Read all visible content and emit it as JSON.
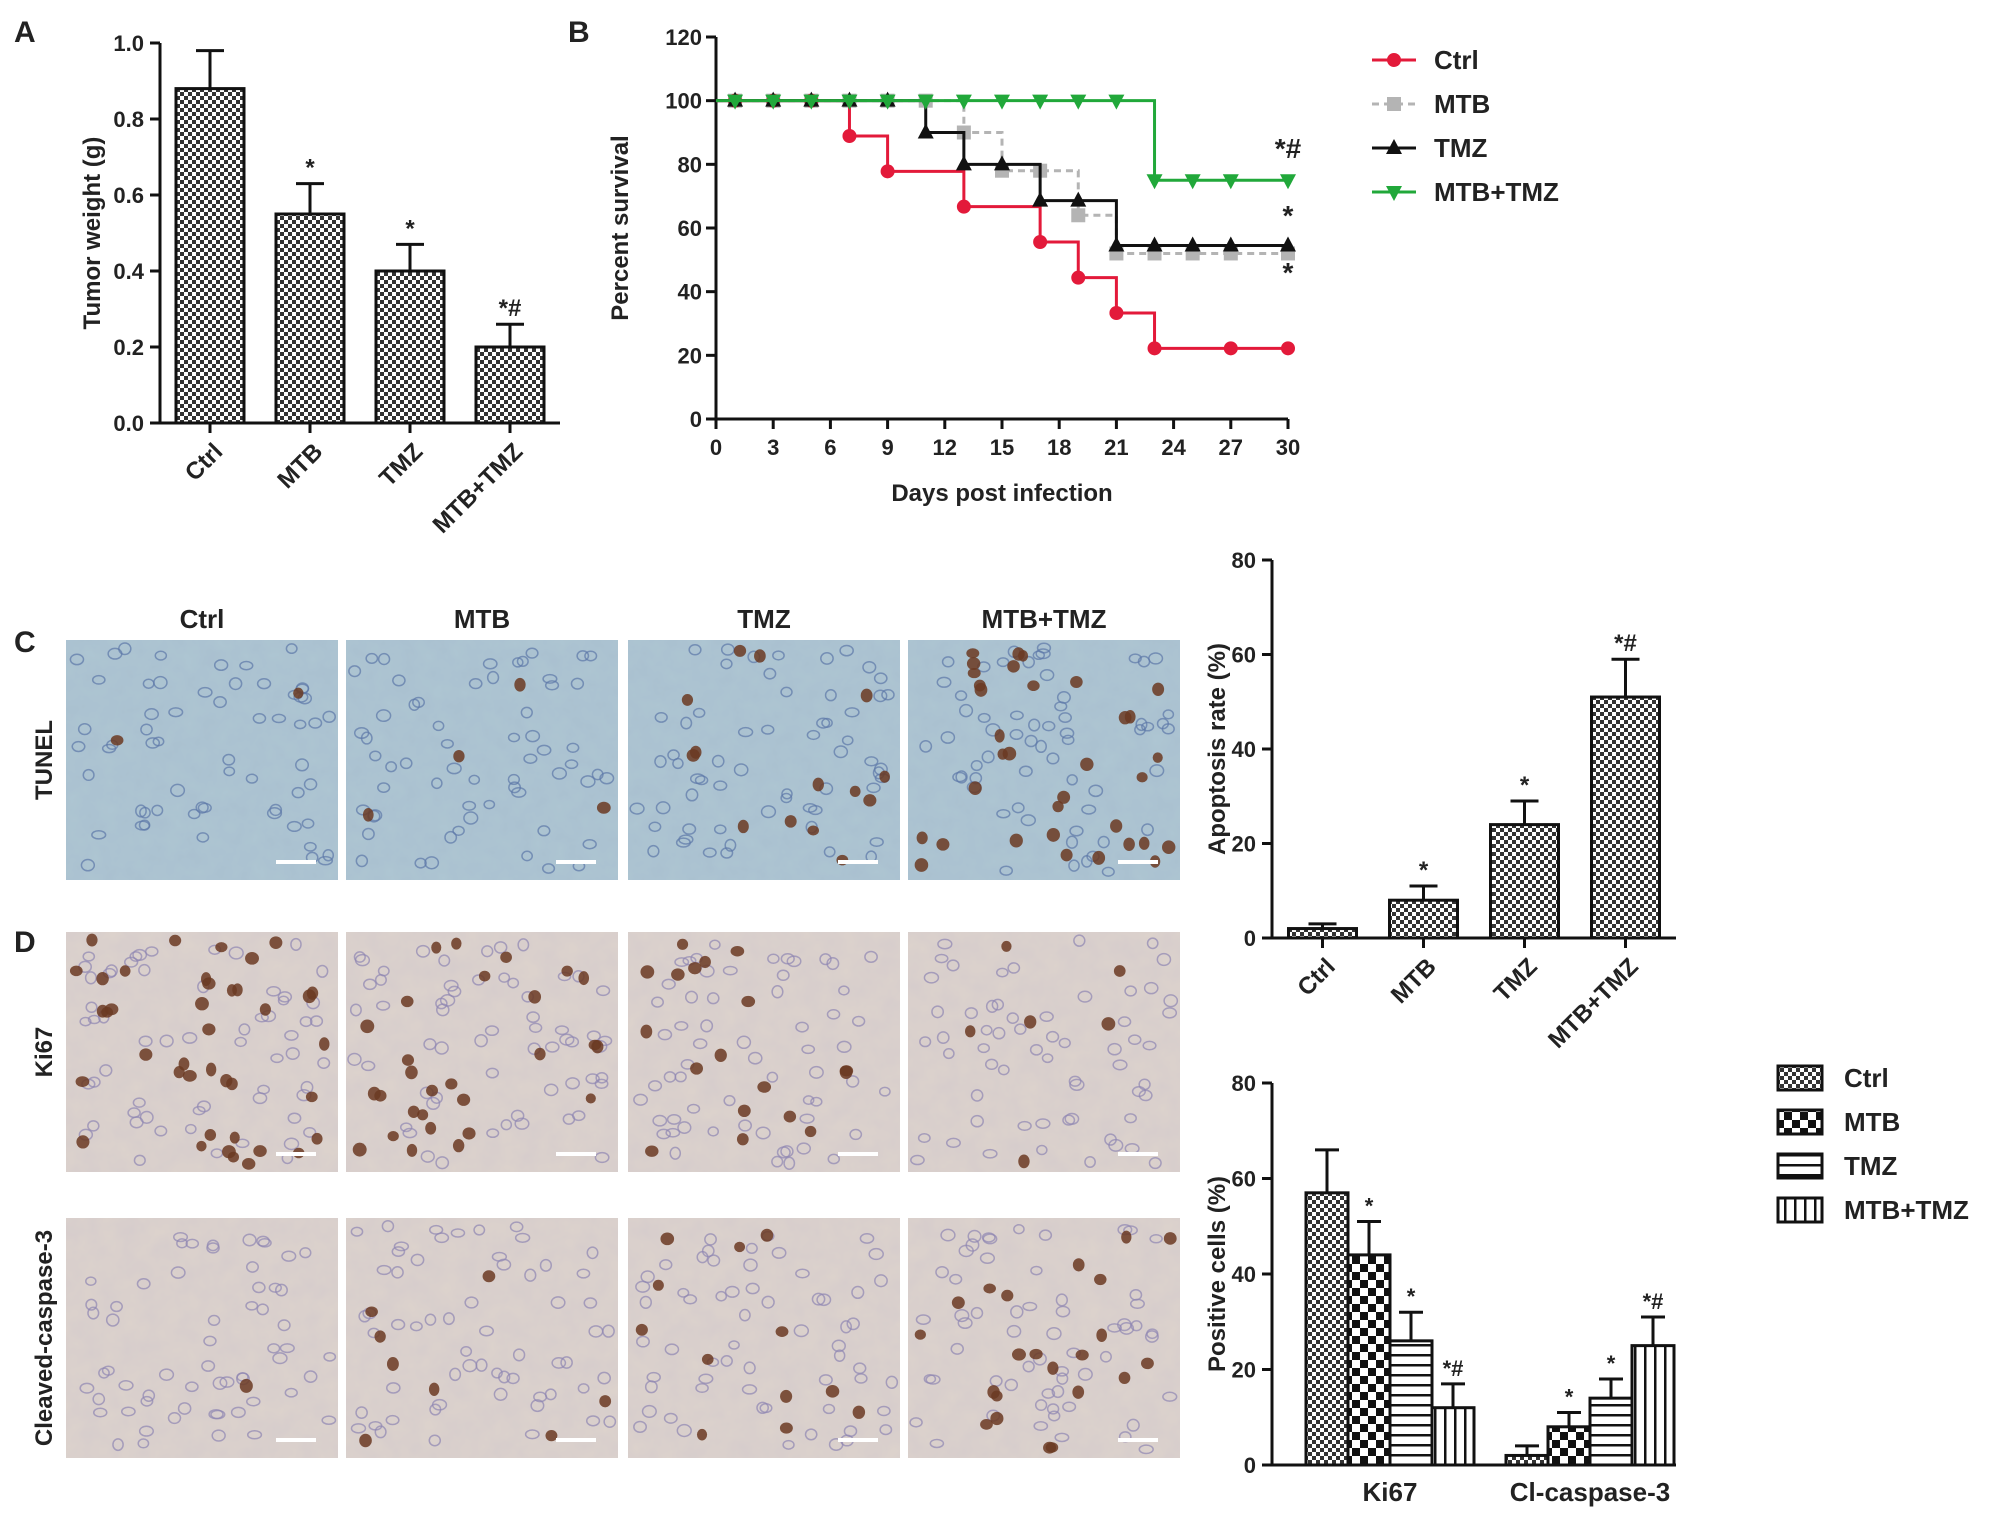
{
  "panel_letters": {
    "a": "A",
    "b": "B",
    "c": "C",
    "d": "D"
  },
  "colors": {
    "ctrl": "#e31a3a",
    "mtb": "#b4b4b4",
    "tmz": "#111111",
    "mtb_tmz": "#21a83a",
    "bar_edge": "#111111",
    "micro_bg_tunel": "#aec6d2",
    "micro_bg_ihc": "#ddd3cc"
  },
  "chart_data": [
    {
      "id": "A",
      "type": "bar",
      "categories": [
        "Ctrl",
        "MTB",
        "TMZ",
        "MTB+TMZ"
      ],
      "values": [
        0.88,
        0.55,
        0.4,
        0.2
      ],
      "errors": [
        0.1,
        0.08,
        0.07,
        0.06
      ],
      "annotations": [
        "",
        "*",
        "*",
        "*#"
      ],
      "ylabel": "Tumor weight (g)",
      "ylim": [
        0,
        1.0
      ],
      "yticks": [
        "0.0",
        "0.2",
        "0.4",
        "0.6",
        "0.8",
        "1.0"
      ],
      "grid": false,
      "legend": "none"
    },
    {
      "id": "B",
      "type": "line",
      "xlabel": "Days post infection",
      "ylabel": "Percent survival",
      "xlim": [
        0,
        30
      ],
      "ylim": [
        0,
        120
      ],
      "xticks": [
        "0",
        "3",
        "6",
        "9",
        "12",
        "15",
        "18",
        "21",
        "24",
        "27",
        "30"
      ],
      "yticks": [
        "0",
        "20",
        "40",
        "60",
        "80",
        "100",
        "120"
      ],
      "legend": "right",
      "series": [
        {
          "name": "Ctrl",
          "style": "solid",
          "marker": "circle",
          "steps": [
            [
              0,
              100
            ],
            [
              7,
              88.9
            ],
            [
              9,
              77.8
            ],
            [
              13,
              66.7
            ],
            [
              17,
              55.6
            ],
            [
              19,
              44.4
            ],
            [
              21,
              33.3
            ],
            [
              23,
              22.2
            ],
            [
              30,
              22.2
            ]
          ],
          "markers": [
            [
              1,
              100
            ],
            [
              3,
              100
            ],
            [
              5,
              100
            ],
            [
              7,
              88.9
            ],
            [
              9,
              77.8
            ],
            [
              13,
              66.7
            ],
            [
              17,
              55.6
            ],
            [
              19,
              44.4
            ],
            [
              21,
              33.3
            ],
            [
              23,
              22.2
            ],
            [
              27,
              22.2
            ],
            [
              30,
              22.2
            ]
          ],
          "annotation": ""
        },
        {
          "name": "MTB",
          "style": "dashed",
          "marker": "square",
          "steps": [
            [
              0,
              100
            ],
            [
              13,
              90
            ],
            [
              15,
              78
            ],
            [
              19,
              64
            ],
            [
              21,
              52
            ],
            [
              30,
              52
            ]
          ],
          "markers": [
            [
              1,
              100
            ],
            [
              3,
              100
            ],
            [
              5,
              100
            ],
            [
              7,
              100
            ],
            [
              9,
              100
            ],
            [
              11,
              100
            ],
            [
              13,
              90
            ],
            [
              15,
              78
            ],
            [
              17,
              78
            ],
            [
              19,
              64
            ],
            [
              21,
              52
            ],
            [
              23,
              52
            ],
            [
              25,
              52
            ],
            [
              27,
              52
            ],
            [
              30,
              52
            ]
          ],
          "annotation": "*"
        },
        {
          "name": "TMZ",
          "style": "solid",
          "marker": "triangle-up",
          "steps": [
            [
              0,
              100
            ],
            [
              11,
              90
            ],
            [
              13,
              80
            ],
            [
              17,
              68.6
            ],
            [
              21,
              54.5
            ],
            [
              30,
              54.5
            ]
          ],
          "markers": [
            [
              1,
              100
            ],
            [
              3,
              100
            ],
            [
              5,
              100
            ],
            [
              7,
              100
            ],
            [
              9,
              100
            ],
            [
              11,
              90
            ],
            [
              13,
              80
            ],
            [
              15,
              80
            ],
            [
              17,
              68.6
            ],
            [
              19,
              68.6
            ],
            [
              21,
              54.5
            ],
            [
              23,
              54.5
            ],
            [
              25,
              54.5
            ],
            [
              27,
              54.5
            ],
            [
              30,
              54.5
            ]
          ],
          "annotation": "*"
        },
        {
          "name": "MTB+TMZ",
          "style": "solid",
          "marker": "triangle-down",
          "steps": [
            [
              0,
              100
            ],
            [
              23,
              75
            ],
            [
              30,
              75
            ]
          ],
          "markers": [
            [
              1,
              100
            ],
            [
              3,
              100
            ],
            [
              5,
              100
            ],
            [
              7,
              100
            ],
            [
              9,
              100
            ],
            [
              11,
              100
            ],
            [
              13,
              100
            ],
            [
              15,
              100
            ],
            [
              17,
              100
            ],
            [
              19,
              100
            ],
            [
              21,
              100
            ],
            [
              23,
              75
            ],
            [
              25,
              75
            ],
            [
              27,
              75
            ],
            [
              30,
              75
            ]
          ],
          "annotation": "*#"
        }
      ]
    },
    {
      "id": "C",
      "type": "bar",
      "categories": [
        "Ctrl",
        "MTB",
        "TMZ",
        "MTB+TMZ"
      ],
      "values": [
        2,
        8,
        24,
        51
      ],
      "errors": [
        1,
        3,
        5,
        8
      ],
      "annotations": [
        "",
        "*",
        "*",
        "*#"
      ],
      "ylabel": "Apoptosis rate (%)",
      "ylim": [
        0,
        80
      ],
      "yticks": [
        "0",
        "20",
        "40",
        "60",
        "80"
      ],
      "legend": "none"
    },
    {
      "id": "D",
      "type": "bar",
      "categories": [
        "Ki67",
        "Cl-caspase-3"
      ],
      "ylabel": "Positive cells (%)",
      "ylim": [
        0,
        80
      ],
      "yticks": [
        "0",
        "20",
        "40",
        "60",
        "80"
      ],
      "legend": "right",
      "series": [
        {
          "name": "Ctrl",
          "pattern": "checker",
          "values": [
            57,
            2
          ],
          "errors": [
            9,
            2
          ],
          "annotations": [
            "",
            ""
          ]
        },
        {
          "name": "MTB",
          "pattern": "bigcheck",
          "values": [
            44,
            8
          ],
          "errors": [
            7,
            3
          ],
          "annotations": [
            "*",
            "*"
          ]
        },
        {
          "name": "TMZ",
          "pattern": "hlines",
          "values": [
            26,
            14
          ],
          "errors": [
            6,
            4
          ],
          "annotations": [
            "*",
            "*"
          ]
        },
        {
          "name": "MTB+TMZ",
          "pattern": "vlines",
          "values": [
            12,
            25
          ],
          "errors": [
            5,
            6
          ],
          "annotations": [
            "*#",
            "*#"
          ]
        }
      ]
    }
  ],
  "micrographs": {
    "columns": [
      "Ctrl",
      "MTB",
      "TMZ",
      "MTB+TMZ"
    ],
    "rows": [
      "TUNEL",
      "Ki67",
      "Cleaved-caspase-3"
    ]
  }
}
